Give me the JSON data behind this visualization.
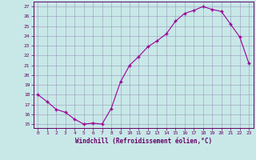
{
  "x": [
    0,
    1,
    2,
    3,
    4,
    5,
    6,
    7,
    8,
    9,
    10,
    11,
    12,
    13,
    14,
    15,
    16,
    17,
    18,
    19,
    20,
    21,
    22,
    23
  ],
  "y": [
    18.0,
    17.3,
    16.5,
    16.2,
    15.5,
    15.0,
    15.1,
    15.0,
    16.6,
    19.3,
    21.0,
    21.9,
    22.9,
    23.5,
    24.2,
    25.5,
    26.3,
    26.6,
    27.0,
    26.7,
    26.5,
    25.2,
    23.9,
    21.2
  ],
  "line_color": "#990099",
  "marker": "+",
  "marker_size": 3,
  "marker_lw": 1.0,
  "line_width": 0.8,
  "bg_color": "#c8e8e8",
  "grid_color": "#9999bb",
  "xlabel": "Windchill (Refroidissement éolien,°C)",
  "ylabel_ticks": [
    15,
    16,
    17,
    18,
    19,
    20,
    21,
    22,
    23,
    24,
    25,
    26,
    27
  ],
  "xlim": [
    -0.5,
    23.5
  ],
  "ylim": [
    14.6,
    27.5
  ],
  "axis_color": "#660066",
  "font_color": "#660066",
  "tick_fontsize": 4.5,
  "xlabel_fontsize": 5.5,
  "figsize": [
    3.2,
    2.0
  ],
  "dpi": 100
}
